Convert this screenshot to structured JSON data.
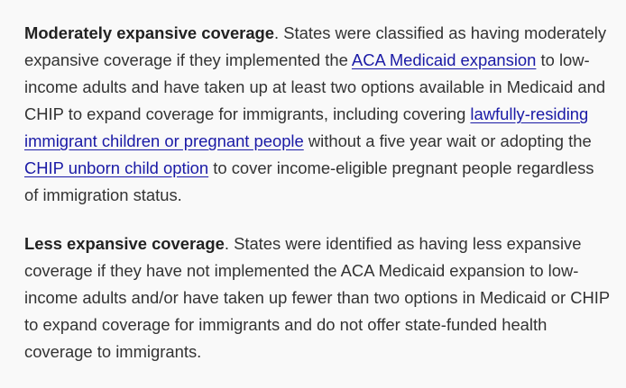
{
  "paragraphs": [
    {
      "lead": "Moderately expansive coverage",
      "segments": [
        {
          "type": "text",
          "text": ". States were classified as having moderately expansive coverage if they implemented the "
        },
        {
          "type": "link",
          "text": "ACA Medicaid expansion"
        },
        {
          "type": "text",
          "text": " to low-income adults and have taken up at least two options available in Medicaid and CHIP to expand coverage for immigrants, including covering "
        },
        {
          "type": "link",
          "text": "lawfully-residing immigrant children or pregnant people"
        },
        {
          "type": "text",
          "text": " without a five year wait or adopting the "
        },
        {
          "type": "link",
          "text": "CHIP unborn child option"
        },
        {
          "type": "text",
          "text": " to cover income-eligible pregnant people regardless of immigration status."
        }
      ]
    },
    {
      "lead": "Less expansive coverage",
      "segments": [
        {
          "type": "text",
          "text": ". States were identified as having less expansive coverage if they have not implemented the ACA Medicaid expansion to low-income adults and/or have taken up fewer than two options in Medicaid or CHIP to expand coverage for immigrants and do not offer state-funded health coverage to immigrants."
        }
      ]
    }
  ],
  "colors": {
    "text": "#333333",
    "link": "#1a1aa6",
    "background": "#f9f9f9"
  }
}
